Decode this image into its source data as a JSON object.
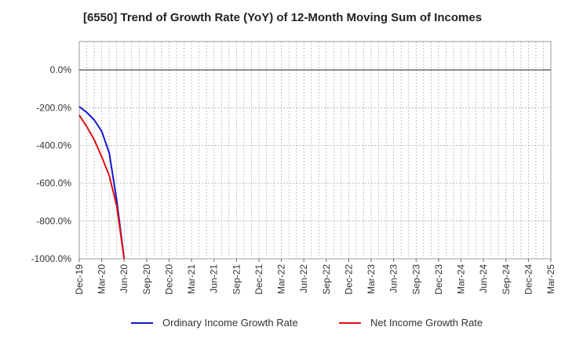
{
  "chart_data": {
    "type": "line",
    "title": "[6550]  Trend of Growth Rate (YoY) of 12-Month Moving Sum of Incomes",
    "xlabel": "",
    "ylabel": "",
    "ylim": [
      -1000,
      150
    ],
    "y_ticks": [
      "0.0%",
      "-200.0%",
      "-400.0%",
      "-600.0%",
      "-800.0%",
      "-1000.0%"
    ],
    "y_tick_values": [
      0,
      -200,
      -400,
      -600,
      -800,
      -1000
    ],
    "x_ticks": [
      "Dec-19",
      "Mar-20",
      "Jun-20",
      "Sep-20",
      "Dec-20",
      "Mar-21",
      "Jun-21",
      "Sep-21",
      "Dec-21",
      "Mar-22",
      "Jun-22",
      "Sep-22",
      "Dec-22",
      "Mar-23",
      "Jun-23",
      "Sep-23",
      "Dec-23",
      "Mar-24",
      "Jun-24",
      "Sep-24",
      "Dec-24",
      "Mar-25"
    ],
    "grid": true,
    "legend_position": "bottom",
    "series": [
      {
        "name": "Ordinary Income Growth Rate",
        "color": "#1515d1",
        "x": [
          "Dec-19",
          "Jan-20",
          "Feb-20",
          "Mar-20",
          "Apr-20",
          "May-20",
          "Jun-20"
        ],
        "values": [
          -195,
          -225,
          -265,
          -325,
          -440,
          -690,
          -1000
        ]
      },
      {
        "name": "Net Income Growth Rate",
        "color": "#e01010",
        "x": [
          "Dec-19",
          "Jan-20",
          "Feb-20",
          "Mar-20",
          "Apr-20",
          "May-20",
          "Jun-20"
        ],
        "values": [
          -240,
          -300,
          -370,
          -460,
          -560,
          -720,
          -1000
        ]
      }
    ]
  }
}
